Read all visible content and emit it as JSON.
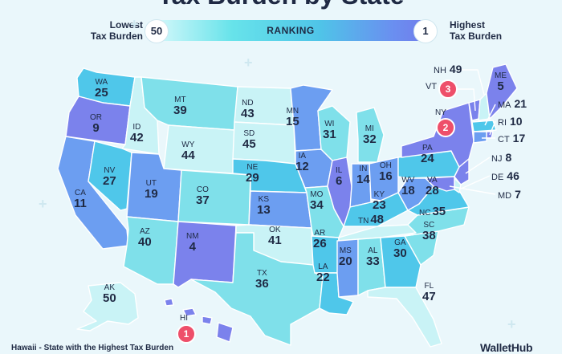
{
  "title": "Tax Burden by State",
  "legend": {
    "low_label": "Lowest\nTax Burden",
    "high_label": "Highest\nTax Burden",
    "low_rank": "50",
    "high_rank": "1",
    "center_label": "RANKING"
  },
  "states": [
    {
      "abbr": "WA",
      "rank": "25"
    },
    {
      "abbr": "OR",
      "rank": "9"
    },
    {
      "abbr": "CA",
      "rank": "11"
    },
    {
      "abbr": "ID",
      "rank": "42"
    },
    {
      "abbr": "NV",
      "rank": "27"
    },
    {
      "abbr": "MT",
      "rank": "39"
    },
    {
      "abbr": "WY",
      "rank": "44"
    },
    {
      "abbr": "UT",
      "rank": "19"
    },
    {
      "abbr": "AZ",
      "rank": "40"
    },
    {
      "abbr": "CO",
      "rank": "37"
    },
    {
      "abbr": "NM",
      "rank": "4"
    },
    {
      "abbr": "ND",
      "rank": "43"
    },
    {
      "abbr": "SD",
      "rank": "45"
    },
    {
      "abbr": "NE",
      "rank": "29"
    },
    {
      "abbr": "KS",
      "rank": "13"
    },
    {
      "abbr": "OK",
      "rank": "41"
    },
    {
      "abbr": "TX",
      "rank": "36"
    },
    {
      "abbr": "MN",
      "rank": "15"
    },
    {
      "abbr": "IA",
      "rank": "12"
    },
    {
      "abbr": "MO",
      "rank": "34"
    },
    {
      "abbr": "AR",
      "rank": "26"
    },
    {
      "abbr": "LA",
      "rank": "22"
    },
    {
      "abbr": "WI",
      "rank": "31"
    },
    {
      "abbr": "IL",
      "rank": "6"
    },
    {
      "abbr": "MI",
      "rank": "32"
    },
    {
      "abbr": "IN",
      "rank": "14"
    },
    {
      "abbr": "OH",
      "rank": "16"
    },
    {
      "abbr": "KY",
      "rank": "23"
    },
    {
      "abbr": "TN",
      "rank": "48"
    },
    {
      "abbr": "MS",
      "rank": "20"
    },
    {
      "abbr": "AL",
      "rank": "33"
    },
    {
      "abbr": "GA",
      "rank": "30"
    },
    {
      "abbr": "FL",
      "rank": "47"
    },
    {
      "abbr": "SC",
      "rank": "38"
    },
    {
      "abbr": "NC",
      "rank": "35"
    },
    {
      "abbr": "VA",
      "rank": "28"
    },
    {
      "abbr": "WV",
      "rank": "18"
    },
    {
      "abbr": "PA",
      "rank": "24"
    },
    {
      "abbr": "NY",
      "rank": "2"
    },
    {
      "abbr": "ME",
      "rank": "5"
    },
    {
      "abbr": "AK",
      "rank": "50"
    },
    {
      "abbr": "HI",
      "rank": "1"
    }
  ],
  "side_states": [
    {
      "abbr": "NH",
      "rank": "49"
    },
    {
      "abbr": "VT",
      "rank": "3"
    },
    {
      "abbr": "MA",
      "rank": "21"
    },
    {
      "abbr": "RI",
      "rank": "10"
    },
    {
      "abbr": "CT",
      "rank": "17"
    },
    {
      "abbr": "NJ",
      "rank": "8"
    },
    {
      "abbr": "DE",
      "rank": "46"
    },
    {
      "abbr": "MD",
      "rank": "7"
    }
  ],
  "colors": {
    "top_10": "#7b82ec",
    "top_20": "#6c9ef1",
    "mid": "#4fc7ea",
    "low_mid": "#7fe0ea",
    "lowest": "#c9f3f6",
    "highlight": "#ee4f6a",
    "background": "#eaf7fb"
  },
  "footnote": "Hawaii - State with the Highest Tax Burden",
  "brand": "WalletHub"
}
